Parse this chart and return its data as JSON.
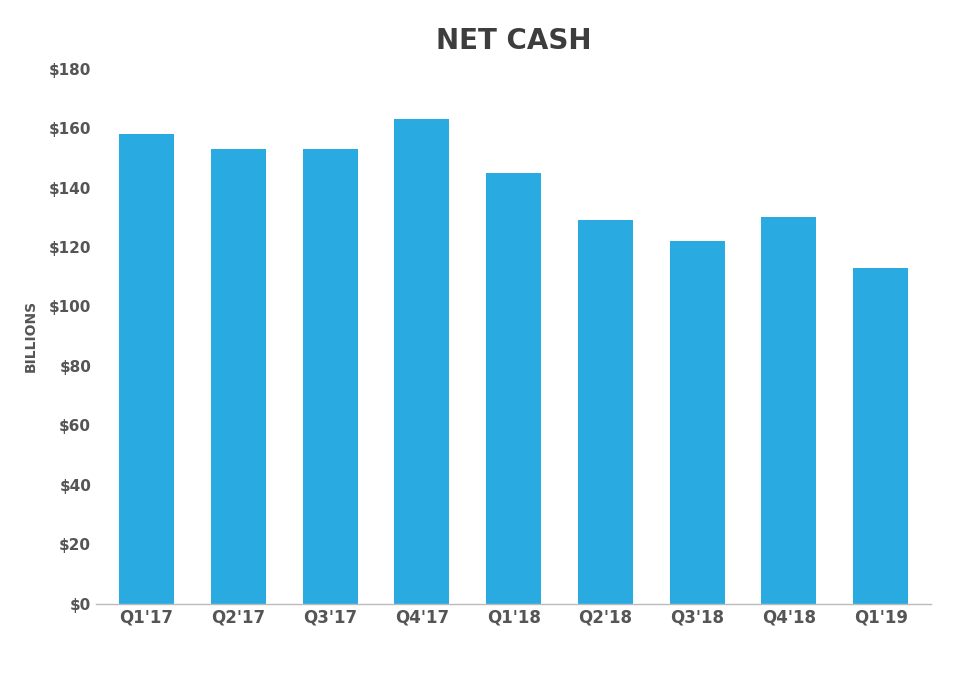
{
  "title": "NET CASH",
  "categories": [
    "Q1'17",
    "Q2'17",
    "Q3'17",
    "Q4'17",
    "Q1'18",
    "Q2'18",
    "Q3'18",
    "Q4'18",
    "Q1'19"
  ],
  "values": [
    158,
    153,
    153,
    163,
    145,
    129,
    122,
    130,
    113
  ],
  "bar_color": "#29ABE2",
  "ylabel": "BILLIONS",
  "ylim": [
    0,
    180
  ],
  "yticks": [
    0,
    20,
    40,
    60,
    80,
    100,
    120,
    140,
    160,
    180
  ],
  "background_color": "#ffffff",
  "title_fontsize": 20,
  "ylabel_fontsize": 10,
  "tick_fontsize": 11,
  "xtick_fontsize": 12,
  "bar_width": 0.6,
  "title_color": "#3d3d3d",
  "tick_color": "#555555",
  "ylabel_color": "#555555",
  "spine_color": "#bbbbbb"
}
